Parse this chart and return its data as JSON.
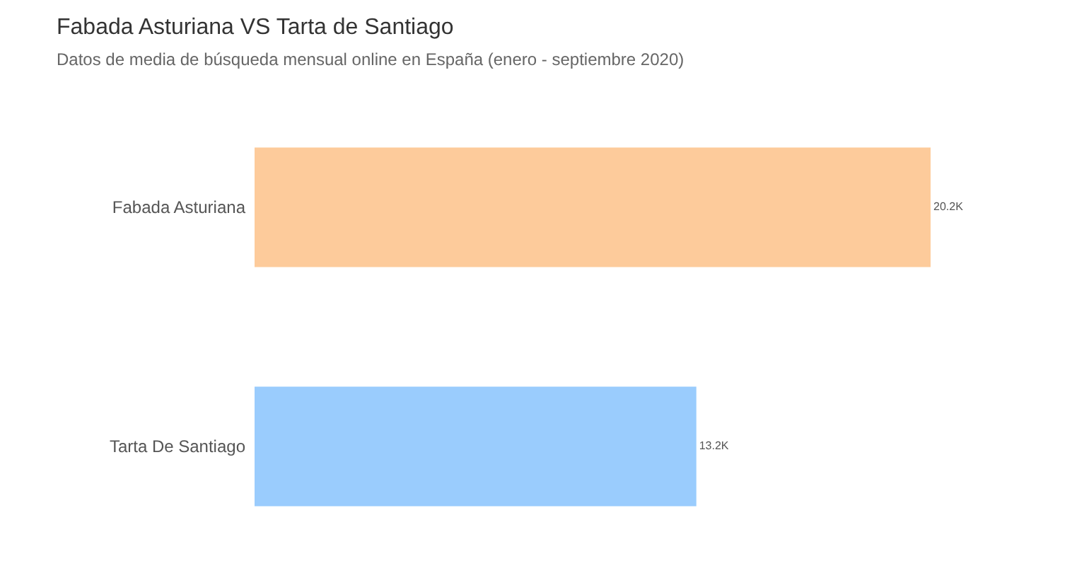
{
  "chart_data": {
    "type": "bar",
    "orientation": "horizontal",
    "title": "Fabada Asturiana VS Tarta de Santiago",
    "subtitle": "Datos de media de búsqueda mensual online en España (enero - septiembre 2020)",
    "categories": [
      "Fabada Asturiana",
      "Tarta De Santiago"
    ],
    "values": [
      20200,
      13200
    ],
    "colors": [
      "#fdcb9b",
      "#9accfd"
    ],
    "value_labels": [
      "20.2K",
      "13.2K"
    ]
  }
}
